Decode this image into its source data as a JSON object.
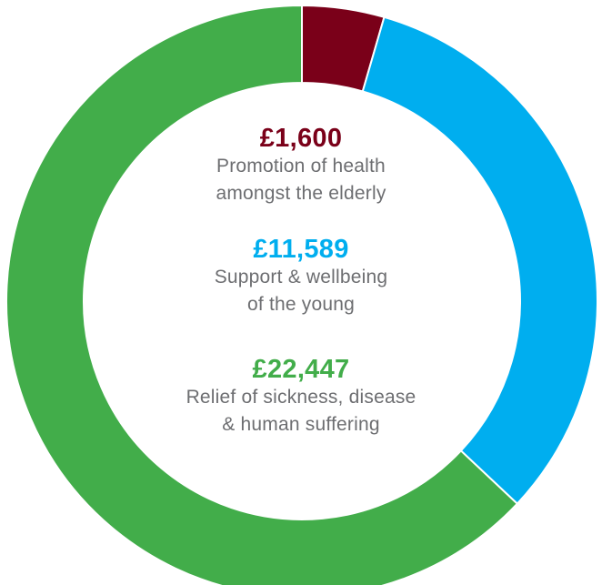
{
  "chart_data": {
    "type": "pie",
    "donut": true,
    "start_angle_deg": 0,
    "direction": "clockwise",
    "slices": [
      {
        "value": 1600,
        "amount_label": "£1,600",
        "description_lines": [
          "Promotion of health",
          "amongst the elderly"
        ],
        "color": "#7a0019"
      },
      {
        "value": 11589,
        "amount_label": "£11,589",
        "description_lines": [
          "Support & wellbeing",
          "of the young"
        ],
        "color": "#00aeef"
      },
      {
        "value": 22447,
        "amount_label": "£22,447",
        "description_lines": [
          "Relief of sickness, disease",
          "& human suffering"
        ],
        "color": "#42ad4a"
      }
    ],
    "description_color": "#6d6e71",
    "separator_color": "#ffffff"
  }
}
